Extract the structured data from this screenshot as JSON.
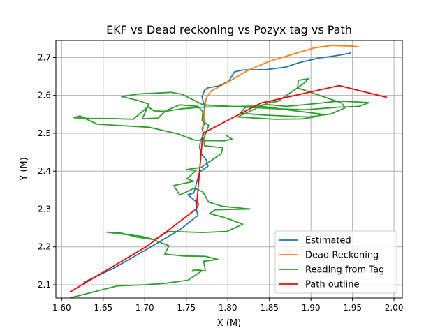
{
  "chart_data": {
    "type": "line",
    "title": "EKF vs Dead reckoning vs Pozyx tag vs Path",
    "xlabel": "X (M)",
    "ylabel": "Y (M)",
    "xlim": [
      1.593,
      2.01
    ],
    "ylim": [
      2.065,
      2.745
    ],
    "xticks": [
      1.6,
      1.65,
      1.7,
      1.75,
      1.8,
      1.85,
      1.9,
      1.95,
      2.0
    ],
    "xtick_labels": [
      "1.60",
      "1.65",
      "1.70",
      "1.75",
      "1.80",
      "1.85",
      "1.90",
      "1.95",
      "2.00"
    ],
    "yticks": [
      2.1,
      2.2,
      2.3,
      2.4,
      2.5,
      2.6,
      2.7
    ],
    "ytick_labels": [
      "2.1",
      "2.2",
      "2.3",
      "2.4",
      "2.5",
      "2.6",
      "2.7"
    ],
    "grid": true,
    "legend_position": "lower right",
    "series": [
      {
        "name": "Estimated",
        "color": "#1f77b4",
        "points": [
          [
            1.627,
            2.107
          ],
          [
            1.662,
            2.143
          ],
          [
            1.702,
            2.193
          ],
          [
            1.742,
            2.245
          ],
          [
            1.764,
            2.283
          ],
          [
            1.762,
            2.3
          ],
          [
            1.765,
            2.313
          ],
          [
            1.756,
            2.33
          ],
          [
            1.752,
            2.338
          ],
          [
            1.759,
            2.342
          ],
          [
            1.762,
            2.366
          ],
          [
            1.764,
            2.382
          ],
          [
            1.766,
            2.398
          ],
          [
            1.776,
            2.413
          ],
          [
            1.774,
            2.43
          ],
          [
            1.768,
            2.446
          ],
          [
            1.766,
            2.463
          ],
          [
            1.767,
            2.48
          ],
          [
            1.771,
            2.497
          ],
          [
            1.769,
            2.513
          ],
          [
            1.772,
            2.525
          ],
          [
            1.771,
            2.545
          ],
          [
            1.772,
            2.571
          ],
          [
            1.769,
            2.596
          ],
          [
            1.772,
            2.614
          ],
          [
            1.776,
            2.62
          ],
          [
            1.789,
            2.625
          ],
          [
            1.801,
            2.637
          ],
          [
            1.808,
            2.662
          ],
          [
            1.818,
            2.667
          ],
          [
            1.846,
            2.668
          ],
          [
            1.87,
            2.675
          ],
          [
            1.885,
            2.686
          ],
          [
            1.91,
            2.699
          ],
          [
            1.922,
            2.702
          ],
          [
            1.936,
            2.707
          ],
          [
            1.948,
            2.712
          ]
        ]
      },
      {
        "name": "Dead Reckoning",
        "color": "#ff7f0e",
        "points": [
          [
            1.77,
            2.51
          ],
          [
            1.772,
            2.56
          ],
          [
            1.774,
            2.593
          ],
          [
            1.78,
            2.612
          ],
          [
            1.8,
            2.635
          ],
          [
            1.825,
            2.667
          ],
          [
            1.85,
            2.69
          ],
          [
            1.88,
            2.71
          ],
          [
            1.905,
            2.726
          ],
          [
            1.925,
            2.732
          ],
          [
            1.95,
            2.73
          ],
          [
            1.957,
            2.728
          ]
        ]
      },
      {
        "name": "Reading from Tag",
        "color": "#2ca02c",
        "points": [
          [
            1.611,
            2.066
          ],
          [
            1.64,
            2.082
          ],
          [
            1.667,
            2.097
          ],
          [
            1.7,
            2.1
          ],
          [
            1.725,
            2.104
          ],
          [
            1.752,
            2.112
          ],
          [
            1.769,
            2.137
          ],
          [
            1.757,
            2.136
          ],
          [
            1.76,
            2.141
          ],
          [
            1.773,
            2.136
          ],
          [
            1.771,
            2.162
          ],
          [
            1.788,
            2.167
          ],
          [
            1.773,
            2.175
          ],
          [
            1.747,
            2.176
          ],
          [
            1.724,
            2.181
          ],
          [
            1.729,
            2.203
          ],
          [
            1.708,
            2.221
          ],
          [
            1.696,
            2.228
          ],
          [
            1.672,
            2.234
          ],
          [
            1.654,
            2.239
          ],
          [
            1.671,
            2.237
          ],
          [
            1.69,
            2.226
          ],
          [
            1.711,
            2.219
          ],
          [
            1.729,
            2.241
          ],
          [
            1.77,
            2.238
          ],
          [
            1.799,
            2.241
          ],
          [
            1.818,
            2.26
          ],
          [
            1.797,
            2.277
          ],
          [
            1.778,
            2.288
          ],
          [
            1.785,
            2.298
          ],
          [
            1.827,
            2.3
          ],
          [
            1.794,
            2.307
          ],
          [
            1.777,
            2.318
          ],
          [
            1.77,
            2.345
          ],
          [
            1.76,
            2.355
          ],
          [
            1.742,
            2.337
          ],
          [
            1.735,
            2.362
          ],
          [
            1.759,
            2.373
          ],
          [
            1.751,
            2.38
          ],
          [
            1.762,
            2.402
          ],
          [
            1.75,
            2.404
          ],
          [
            1.768,
            2.41
          ],
          [
            1.782,
            2.431
          ],
          [
            1.792,
            2.446
          ],
          [
            1.794,
            2.462
          ],
          [
            1.772,
            2.467
          ],
          [
            1.771,
            2.485
          ],
          [
            1.777,
            2.521
          ],
          [
            1.769,
            2.533
          ],
          [
            1.77,
            2.557
          ],
          [
            1.764,
            2.571
          ],
          [
            1.742,
            2.575
          ],
          [
            1.725,
            2.559
          ],
          [
            1.716,
            2.54
          ],
          [
            1.697,
            2.538
          ],
          [
            1.705,
            2.577
          ],
          [
            1.693,
            2.586
          ],
          [
            1.672,
            2.597
          ],
          [
            1.693,
            2.604
          ],
          [
            1.732,
            2.608
          ],
          [
            1.745,
            2.603
          ],
          [
            1.77,
            2.575
          ],
          [
            1.856,
            2.565
          ],
          [
            1.893,
            2.562
          ],
          [
            1.934,
            2.569
          ],
          [
            1.958,
            2.571
          ],
          [
            1.97,
            2.581
          ],
          [
            1.934,
            2.585
          ],
          [
            1.904,
            2.578
          ],
          [
            1.871,
            2.571
          ],
          [
            1.846,
            2.576
          ],
          [
            1.821,
            2.568
          ],
          [
            1.815,
            2.553
          ],
          [
            1.844,
            2.548
          ],
          [
            1.897,
            2.543
          ],
          [
            1.924,
            2.551
          ],
          [
            1.941,
            2.567
          ],
          [
            1.937,
            2.58
          ],
          [
            1.884,
            2.62
          ],
          [
            1.885,
            2.64
          ],
          [
            1.897,
            2.644
          ],
          [
            1.891,
            2.631
          ],
          [
            1.86,
            2.584
          ],
          [
            1.849,
            2.581
          ],
          [
            1.812,
            2.543
          ],
          [
            1.857,
            2.537
          ],
          [
            1.89,
            2.538
          ],
          [
            1.906,
            2.544
          ],
          [
            1.912,
            2.551
          ],
          [
            1.881,
            2.559
          ],
          [
            1.838,
            2.572
          ],
          [
            1.77,
            2.569
          ],
          [
            1.746,
            2.565
          ],
          [
            1.725,
            2.558
          ],
          [
            1.711,
            2.559
          ],
          [
            1.704,
            2.57
          ],
          [
            1.686,
            2.537
          ],
          [
            1.66,
            2.539
          ],
          [
            1.635,
            2.539
          ],
          [
            1.615,
            2.541
          ],
          [
            1.622,
            2.546
          ],
          [
            1.629,
            2.538
          ],
          [
            1.643,
            2.524
          ],
          [
            1.666,
            2.521
          ],
          [
            1.705,
            2.516
          ],
          [
            1.739,
            2.499
          ],
          [
            1.76,
            2.482
          ],
          [
            1.796,
            2.48
          ],
          [
            1.805,
            2.485
          ],
          [
            1.798,
            2.494
          ]
        ]
      },
      {
        "name": "Path outline",
        "color": "#ff0000",
        "points": [
          [
            1.61,
            2.081
          ],
          [
            1.703,
            2.202
          ],
          [
            1.762,
            2.3
          ],
          [
            1.77,
            2.5
          ],
          [
            1.84,
            2.58
          ],
          [
            1.934,
            2.626
          ],
          [
            1.991,
            2.595
          ]
        ]
      }
    ]
  }
}
